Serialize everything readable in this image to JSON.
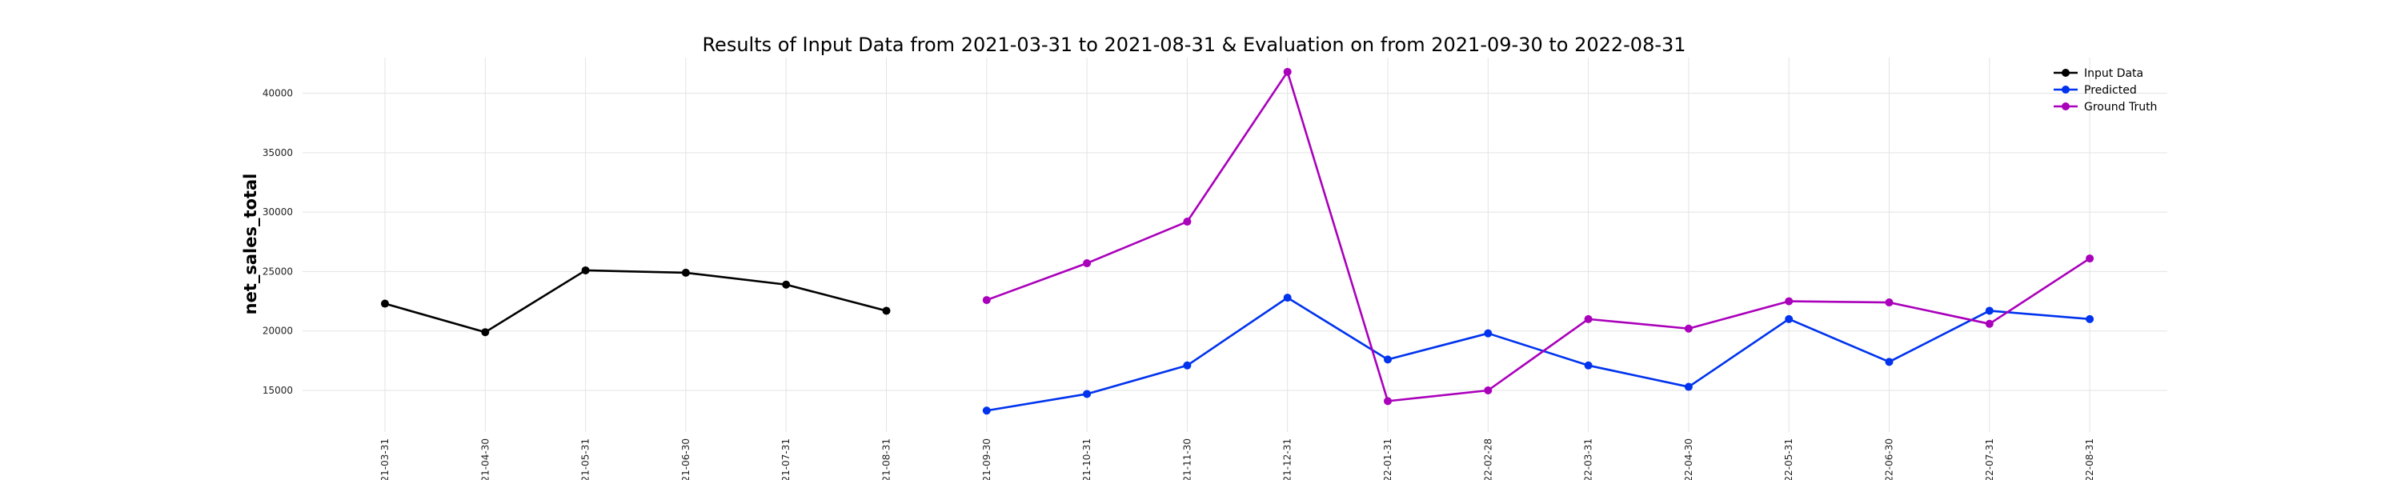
{
  "chart_data": {
    "type": "line",
    "title": "Results of Input Data from 2021-03-31 to 2021-08-31 & Evaluation on from 2021-09-30 to 2022-08-31",
    "xlabel": "",
    "ylabel": "net_sales_total",
    "x": [
      "2021-03-31",
      "2021-04-30",
      "2021-05-31",
      "2021-06-30",
      "2021-07-31",
      "2021-08-31",
      "2021-09-30",
      "2021-10-31",
      "2021-11-30",
      "2021-12-31",
      "2022-01-31",
      "2022-02-28",
      "2022-03-31",
      "2022-04-30",
      "2022-05-31",
      "2022-06-30",
      "2022-07-31",
      "2022-08-31"
    ],
    "x_tick_labels": [
      "21-03-31",
      "21-04-30",
      "21-05-31",
      "21-06-30",
      "21-07-31",
      "21-08-31",
      "21-09-30",
      "21-10-31",
      "21-11-30",
      "21-12-31",
      "22-01-31",
      "22-02-28",
      "22-03-31",
      "22-04-30",
      "22-05-31",
      "22-06-30",
      "22-07-31",
      "22-08-31"
    ],
    "y_ticks": [
      15000,
      20000,
      25000,
      30000,
      35000,
      40000
    ],
    "ylim": [
      11500,
      43000
    ],
    "grid": true,
    "legend_position": "top-right",
    "series": [
      {
        "name": "Input Data",
        "color": "#000000",
        "x": [
          "2021-03-31",
          "2021-04-30",
          "2021-05-31",
          "2021-06-30",
          "2021-07-31",
          "2021-08-31"
        ],
        "values": [
          22300,
          19900,
          25100,
          24900,
          23900,
          21700
        ]
      },
      {
        "name": "Predicted",
        "color": "#0033ee",
        "x": [
          "2021-09-30",
          "2021-10-31",
          "2021-11-30",
          "2021-12-31",
          "2022-01-31",
          "2022-02-28",
          "2022-03-31",
          "2022-04-30",
          "2022-05-31",
          "2022-06-30",
          "2022-07-31",
          "2022-08-31"
        ],
        "values": [
          13300,
          14700,
          17100,
          22800,
          17600,
          19800,
          17100,
          15300,
          21000,
          17400,
          21700,
          21000
        ]
      },
      {
        "name": "Ground Truth",
        "color": "#aa00bb",
        "x": [
          "2021-09-30",
          "2021-10-31",
          "2021-11-30",
          "2021-12-31",
          "2022-01-31",
          "2022-02-28",
          "2022-03-31",
          "2022-04-30",
          "2022-05-31",
          "2022-06-30",
          "2022-07-31",
          "2022-08-31"
        ],
        "values": [
          22600,
          25700,
          29200,
          41800,
          14100,
          15000,
          21000,
          20200,
          22500,
          22400,
          20600,
          26100
        ]
      }
    ]
  }
}
